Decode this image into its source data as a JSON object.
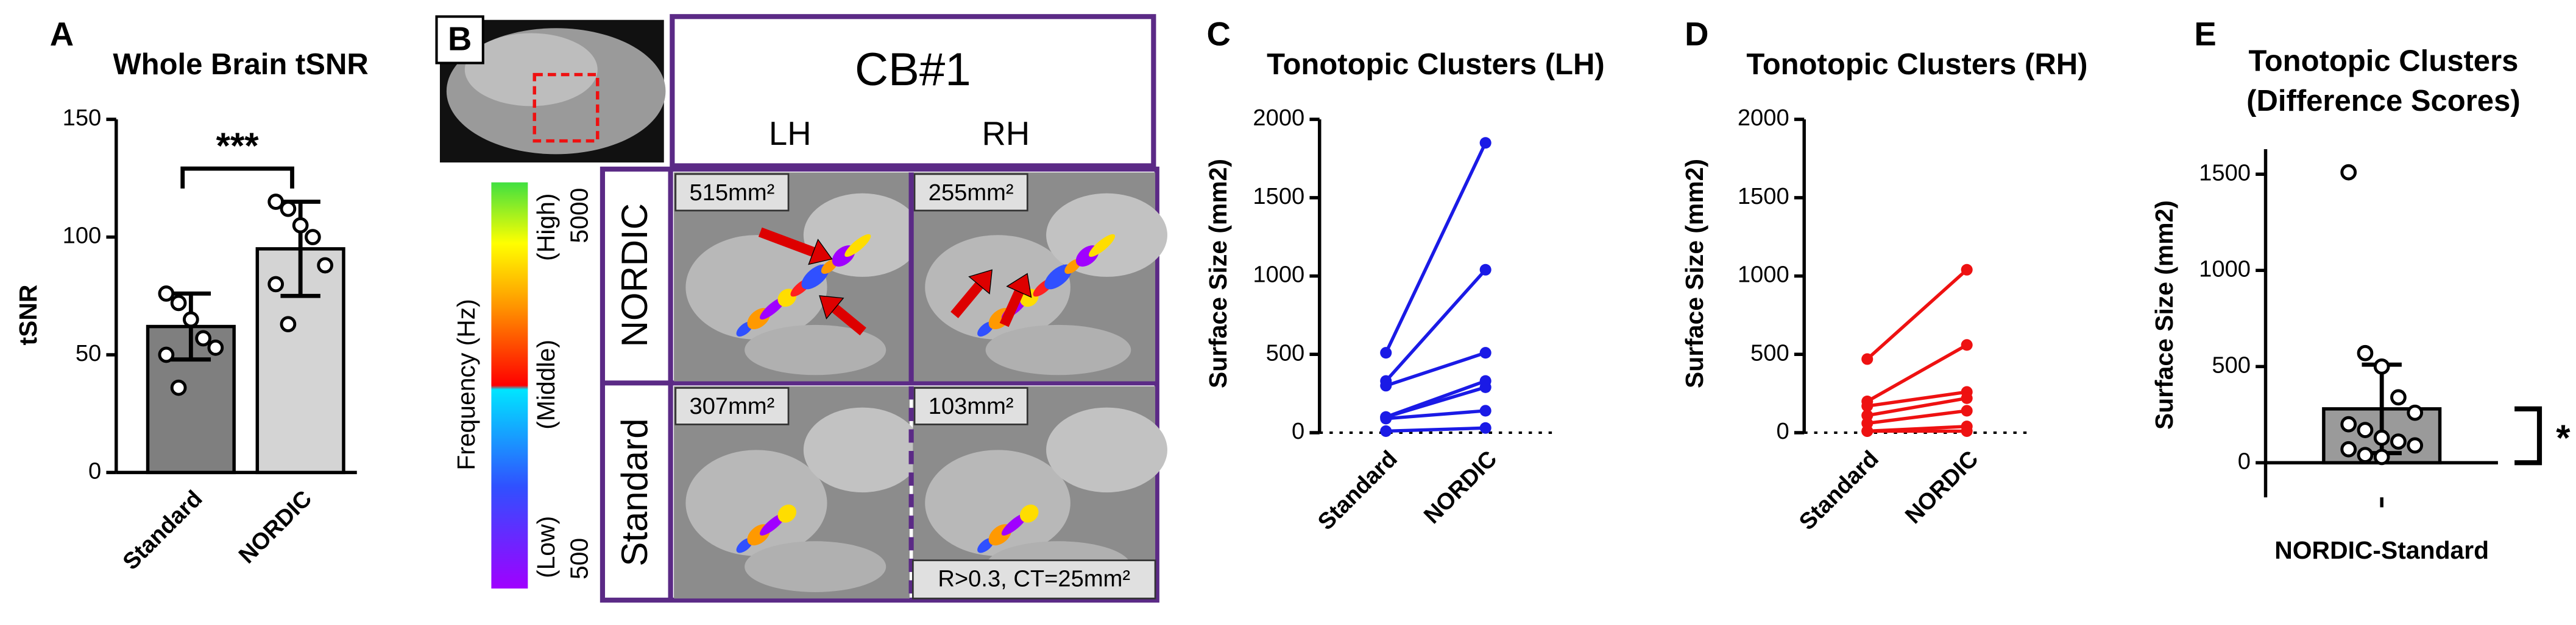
{
  "chart_data": [
    {
      "type": "bar",
      "label": "A",
      "title": [
        "Whole Brain tSNR"
      ],
      "ylabel": "tSNR",
      "categories": [
        "Standard",
        "NORDIC"
      ],
      "values": [
        62,
        95
      ],
      "errors": [
        14,
        20
      ],
      "points": [
        [
          76,
          72,
          65,
          57,
          53,
          50,
          36
        ],
        [
          115,
          112,
          105,
          100,
          88,
          80,
          63
        ]
      ],
      "colors": [
        "#7f7f7f",
        "#d4d4d4"
      ],
      "annotation": "***",
      "ylim": [
        0,
        150
      ],
      "yticks": [
        0,
        50,
        100,
        150
      ]
    },
    {
      "type": "line",
      "label": "C",
      "title": [
        "Tonotopic Clusters (LH)"
      ],
      "ylabel": "Surface Size (mm2)",
      "categories": [
        "Standard",
        "NORDIC"
      ],
      "color": "#1a1ae6",
      "hline": 0,
      "series": [
        {
          "values": [
            510,
            1850
          ]
        },
        {
          "values": [
            330,
            1040
          ]
        },
        {
          "values": [
            300,
            510
          ]
        },
        {
          "values": [
            100,
            330
          ]
        },
        {
          "values": [
            100,
            290
          ]
        },
        {
          "values": [
            90,
            140
          ]
        },
        {
          "values": [
            10,
            30
          ]
        }
      ],
      "ylim": [
        0,
        2000
      ],
      "yticks": [
        0,
        500,
        1000,
        1500,
        2000
      ]
    },
    {
      "type": "line",
      "label": "D",
      "title": [
        "Tonotopic Clusters (RH)"
      ],
      "ylabel": "Surface Size (mm2)",
      "categories": [
        "Standard",
        "NORDIC"
      ],
      "color": "#ee1111",
      "hline": 0,
      "series": [
        {
          "values": [
            470,
            1040
          ]
        },
        {
          "values": [
            200,
            560
          ]
        },
        {
          "values": [
            170,
            260
          ]
        },
        {
          "values": [
            110,
            220
          ]
        },
        {
          "values": [
            60,
            140
          ]
        },
        {
          "values": [
            10,
            40
          ]
        },
        {
          "values": [
            10,
            10
          ]
        }
      ],
      "ylim": [
        0,
        2000
      ],
      "yticks": [
        0,
        500,
        1000,
        1500,
        2000
      ]
    },
    {
      "type": "bar",
      "label": "E",
      "title": [
        "Tonotopic Clusters",
        "(Difference Scores)"
      ],
      "ylabel": "Surface Size (mm2)",
      "categories": [
        "NORDIC-Standard"
      ],
      "values": [
        280
      ],
      "errors": [
        230
      ],
      "points": [
        [
          1510,
          570,
          500,
          340,
          260,
          200,
          170,
          130,
          110,
          90,
          70,
          40,
          30
        ]
      ],
      "colors": [
        "#9a9a9a"
      ],
      "annotation": "*",
      "ylim": [
        -180,
        1630
      ],
      "yticks": [
        0,
        500,
        1000,
        1500
      ]
    }
  ],
  "panel_b": {
    "label": "B",
    "title": "CB#1",
    "columns": [
      "LH",
      "RH"
    ],
    "rows": [
      "NORDIC",
      "Standard"
    ],
    "areas": [
      [
        "515mm²",
        "255mm²"
      ],
      [
        "307mm²",
        "103mm²"
      ]
    ],
    "note": "R>0.3, CT=25mm²",
    "colorbar": {
      "label": "Frequency (Hz)",
      "levels": [
        "(High)",
        "(Middle)",
        "(Low)"
      ],
      "ticks": [
        5000,
        500
      ]
    }
  }
}
